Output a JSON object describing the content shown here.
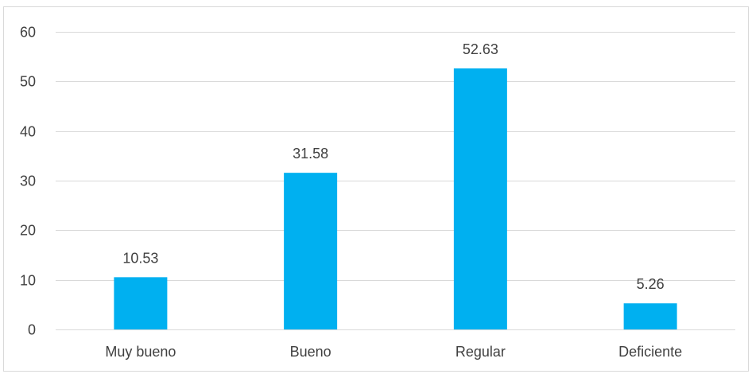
{
  "chart_data": {
    "type": "bar",
    "categories": [
      "Muy bueno",
      "Bueno",
      "Regular",
      "Deficiente"
    ],
    "values": [
      10.53,
      31.58,
      52.63,
      5.26
    ],
    "data_labels": [
      "10.53",
      "31.58",
      "52.63",
      "5.26"
    ],
    "title": "",
    "xlabel": "",
    "ylabel": "",
    "ylim": [
      0,
      60
    ],
    "yticks": [
      0,
      10,
      20,
      30,
      40,
      50,
      60
    ],
    "ytick_labels": [
      "0",
      "10",
      "20",
      "30",
      "40",
      "50",
      "60"
    ],
    "grid": true,
    "legend": "none",
    "bar_color": "#00B0F0",
    "grid_color": "#D9D9D9",
    "text_color": "#404040",
    "border_color": "#D9D9D9"
  }
}
